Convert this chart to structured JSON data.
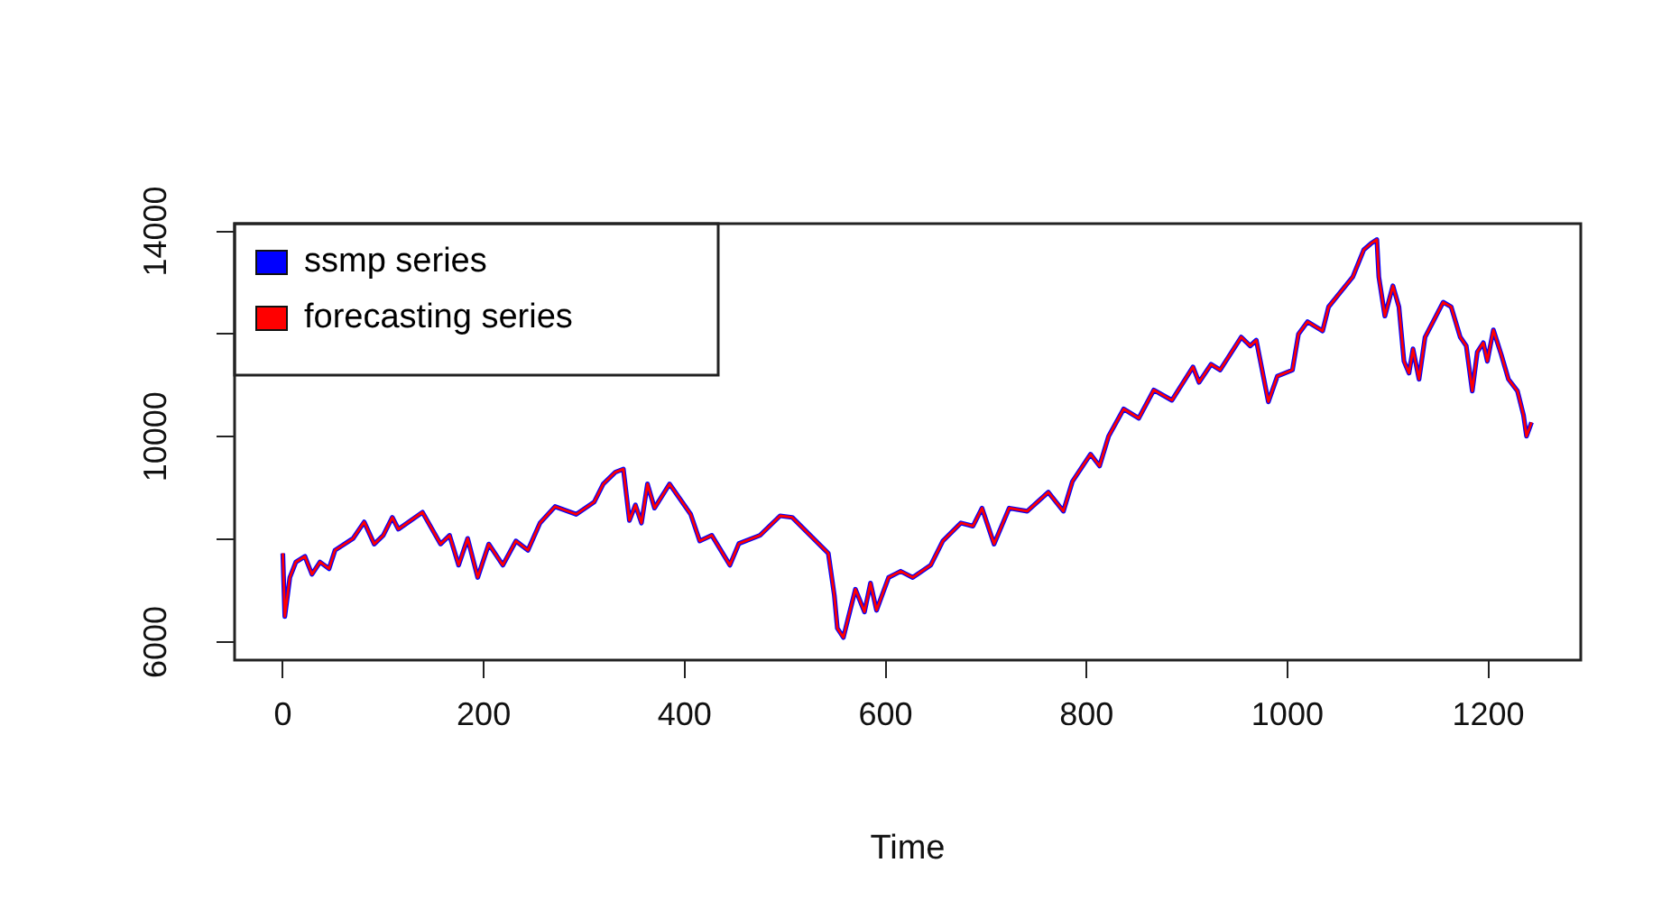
{
  "chart_data": {
    "type": "line",
    "xlabel": "Time",
    "xlim": [
      -48,
      1292
    ],
    "xticks": [
      0,
      200,
      400,
      600,
      800,
      1000,
      1200
    ],
    "ylim": [
      5650,
      14150
    ],
    "yticks": [
      6000,
      {
        "value": 8000,
        "label": null
      },
      10000,
      {
        "value": 12000,
        "label": null
      },
      14000
    ],
    "grid": false,
    "legend": "top left",
    "marker": "none",
    "line_style": "solid",
    "x": [
      0,
      2,
      7,
      13,
      22,
      29,
      37,
      46,
      52,
      70,
      81,
      91,
      100,
      109,
      115,
      139,
      157,
      166,
      175,
      184,
      194,
      205,
      219,
      232,
      244,
      256,
      271,
      292,
      310,
      319,
      331,
      339,
      345,
      351,
      357,
      363,
      370,
      385,
      406,
      415,
      427,
      445,
      454,
      475,
      495,
      507,
      525,
      543,
      549,
      552,
      558,
      561,
      570,
      579,
      585,
      591,
      603,
      615,
      627,
      645,
      657,
      675,
      687,
      696,
      708,
      723,
      741,
      762,
      777,
      786,
      804,
      813,
      822,
      837,
      852,
      867,
      885,
      906,
      912,
      924,
      933,
      954,
      963,
      969,
      981,
      990,
      1005,
      1011,
      1020,
      1035,
      1041,
      1053,
      1065,
      1076,
      1083,
      1089,
      1091,
      1097,
      1105,
      1111,
      1116,
      1121,
      1125,
      1131,
      1137,
      1145,
      1155,
      1163,
      1172,
      1178,
      1184,
      1189,
      1195,
      1199,
      1205,
      1213,
      1220,
      1229,
      1235,
      1238,
      1243
    ],
    "series": [
      {
        "name": "ssmp series",
        "color": "#0000ff",
        "values": [
          7730,
          6500,
          7260,
          7560,
          7670,
          7320,
          7560,
          7430,
          7790,
          8020,
          8340,
          7910,
          8080,
          8430,
          8200,
          8530,
          7910,
          8080,
          7500,
          8020,
          7260,
          7910,
          7500,
          7970,
          7790,
          8320,
          8640,
          8490,
          8730,
          9080,
          9310,
          9370,
          8370,
          8670,
          8320,
          9080,
          8610,
          9080,
          8490,
          7970,
          8080,
          7500,
          7920,
          8080,
          8460,
          8430,
          8080,
          7730,
          6910,
          6270,
          6090,
          6330,
          7030,
          6590,
          7150,
          6620,
          7260,
          7380,
          7260,
          7500,
          7970,
          8320,
          8260,
          8610,
          7910,
          8610,
          8550,
          8920,
          8550,
          9130,
          9660,
          9430,
          10010,
          10540,
          10360,
          10910,
          10710,
          11360,
          11060,
          11410,
          11300,
          11940,
          11770,
          11880,
          10680,
          11180,
          11300,
          12000,
          12240,
          12060,
          12530,
          12820,
          13110,
          13640,
          13760,
          13840,
          13110,
          12350,
          12940,
          12530,
          11470,
          11240,
          11710,
          11120,
          11940,
          12240,
          12620,
          12530,
          11940,
          11770,
          10890,
          11650,
          11830,
          11470,
          12080,
          11590,
          11120,
          10890,
          10420,
          10010,
          10280
        ]
      },
      {
        "name": "forecasting series",
        "color": "#ff0000",
        "values": [
          7730,
          6500,
          7260,
          7560,
          7670,
          7320,
          7560,
          7430,
          7790,
          8020,
          8340,
          7910,
          8080,
          8430,
          8200,
          8530,
          7910,
          8080,
          7500,
          8020,
          7260,
          7910,
          7500,
          7970,
          7790,
          8320,
          8640,
          8490,
          8730,
          9080,
          9310,
          9370,
          8370,
          8670,
          8320,
          9080,
          8610,
          9080,
          8490,
          7970,
          8080,
          7500,
          7920,
          8080,
          8460,
          8430,
          8080,
          7730,
          6910,
          6270,
          6090,
          6330,
          7030,
          6590,
          7150,
          6620,
          7260,
          7380,
          7260,
          7500,
          7970,
          8320,
          8260,
          8610,
          7910,
          8610,
          8550,
          8920,
          8550,
          9130,
          9660,
          9430,
          10010,
          10540,
          10360,
          10910,
          10710,
          11360,
          11060,
          11410,
          11300,
          11940,
          11770,
          11880,
          10680,
          11180,
          11300,
          12000,
          12240,
          12060,
          12530,
          12820,
          13110,
          13640,
          13760,
          13840,
          13110,
          12350,
          12940,
          12530,
          11470,
          11240,
          11710,
          11120,
          11940,
          12240,
          12620,
          12530,
          11940,
          11770,
          10890,
          11650,
          11830,
          11470,
          12080,
          11590,
          11120,
          10890,
          10420,
          10010,
          10280
        ]
      }
    ]
  }
}
